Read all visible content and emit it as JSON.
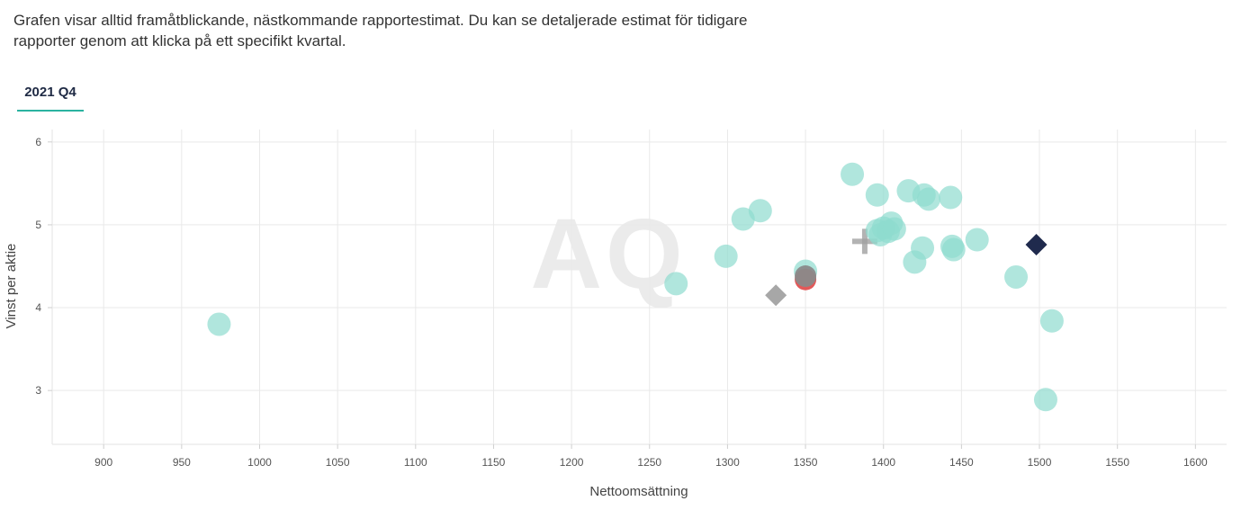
{
  "intro_text": "Grafen visar alltid framåtblickande, nästkommande rapportestimat. Du kan se detaljerade estimat för tidigare rapporter genom att klicka på ett specifikt kvartal.",
  "tabs": [
    {
      "label": "2021 Q4",
      "active": true
    }
  ],
  "watermark": "AQ",
  "colors": {
    "accent": "#2bb3a0",
    "point": "#8fdccf",
    "point_opacity": 0.7,
    "red": "#e05050",
    "gray": "#8a8a8a",
    "diamond_gray": "#a7a7a7",
    "diamond_navy": "#1f2a4d",
    "plus": "#a0a0a0"
  },
  "chart_data": {
    "type": "scatter",
    "xlabel": "Nettoomsättning",
    "ylabel": "Vinst per aktie",
    "xlim": [
      867,
      1620
    ],
    "ylim": [
      2.35,
      6.15
    ],
    "xticks": [
      900,
      950,
      1000,
      1050,
      1100,
      1150,
      1200,
      1250,
      1300,
      1350,
      1400,
      1450,
      1500,
      1550,
      1600
    ],
    "yticks": [
      3,
      4,
      5,
      6
    ],
    "grid": true,
    "estimates": [
      {
        "x": 974,
        "y": 3.8
      },
      {
        "x": 1267,
        "y": 4.29
      },
      {
        "x": 1299,
        "y": 4.62
      },
      {
        "x": 1310,
        "y": 5.07
      },
      {
        "x": 1321,
        "y": 5.17
      },
      {
        "x": 1350,
        "y": 4.44
      },
      {
        "x": 1380,
        "y": 5.61
      },
      {
        "x": 1396,
        "y": 5.36
      },
      {
        "x": 1396,
        "y": 4.93
      },
      {
        "x": 1398,
        "y": 4.88
      },
      {
        "x": 1400,
        "y": 4.96
      },
      {
        "x": 1403,
        "y": 4.92
      },
      {
        "x": 1405,
        "y": 5.02
      },
      {
        "x": 1407,
        "y": 4.95
      },
      {
        "x": 1416,
        "y": 5.41
      },
      {
        "x": 1420,
        "y": 4.55
      },
      {
        "x": 1425,
        "y": 4.72
      },
      {
        "x": 1426,
        "y": 5.36
      },
      {
        "x": 1429,
        "y": 5.31
      },
      {
        "x": 1443,
        "y": 5.33
      },
      {
        "x": 1444,
        "y": 4.74
      },
      {
        "x": 1445,
        "y": 4.7
      },
      {
        "x": 1460,
        "y": 4.82
      },
      {
        "x": 1485,
        "y": 4.37
      },
      {
        "x": 1504,
        "y": 2.89
      },
      {
        "x": 1508,
        "y": 3.84
      }
    ],
    "highlight_points": [
      {
        "x": 1350,
        "y": 4.34,
        "color": "#e05050"
      },
      {
        "x": 1350,
        "y": 4.38,
        "color": "#8a8a8a"
      }
    ],
    "diamonds": [
      {
        "x": 1331,
        "y": 4.15,
        "color": "#a7a7a7"
      },
      {
        "x": 1498,
        "y": 4.76,
        "color": "#1f2a4d"
      }
    ],
    "plus_marker": {
      "x": 1388,
      "y": 4.8
    }
  }
}
